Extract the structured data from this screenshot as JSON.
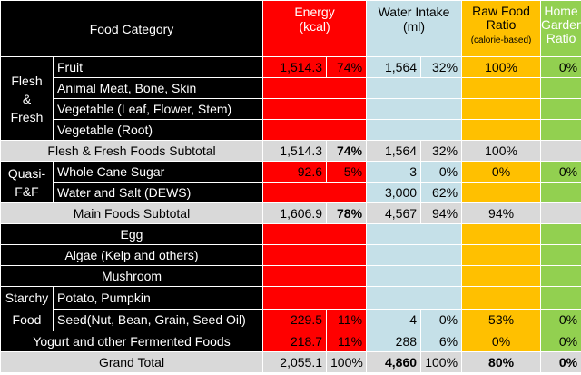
{
  "header": {
    "category": "Food Category",
    "energy_line1": "Energy",
    "energy_line2": "(kcal)",
    "water_line1": "Water Intake",
    "water_line2": "(ml)",
    "raw_line1": "Raw Food",
    "raw_line2": "Ratio",
    "raw_line3": "(calorie-based)",
    "garden_line1": "Home",
    "garden_line2": "Garden",
    "garden_line3": "Ratio"
  },
  "groups": {
    "flesh_1": "Flesh",
    "flesh_2": "&",
    "flesh_3": "Fresh",
    "quasi_1": "Quasi-",
    "quasi_2": "F&F",
    "starchy_1": "Starchy",
    "starchy_2": "Food"
  },
  "rows": {
    "fruit": {
      "label": "Fruit",
      "kcal": "1,514.3",
      "kcal_pct": "74%",
      "water": "1,564",
      "water_pct": "32%",
      "raw": "100%",
      "garden": "0%"
    },
    "meat": {
      "label": "Animal Meat, Bone, Skin"
    },
    "veg_leaf": {
      "label": "Vegetable (Leaf, Flower, Stem)"
    },
    "veg_root": {
      "label": "Vegetable (Root)"
    },
    "ff_sub": {
      "label": "Flesh & Fresh Foods Subtotal",
      "kcal": "1,514.3",
      "kcal_pct": "74%",
      "water": "1,564",
      "water_pct": "32%",
      "raw": "100%"
    },
    "sugar": {
      "label": "Whole Cane Sugar",
      "kcal": "92.6",
      "kcal_pct": "5%",
      "water": "3",
      "water_pct": "0%",
      "raw": "0%",
      "garden": "0%"
    },
    "water_salt": {
      "label": "Water and Salt (DEWS)",
      "water": "3,000",
      "water_pct": "62%"
    },
    "main_sub": {
      "label": "Main Foods Subtotal",
      "kcal": "1,606.9",
      "kcal_pct": "78%",
      "water": "4,567",
      "water_pct": "94%",
      "raw": "94%"
    },
    "egg": {
      "label": "Egg"
    },
    "algae": {
      "label": "Algae (Kelp and others)"
    },
    "mushroom": {
      "label": "Mushroom"
    },
    "potato": {
      "label": "Potato, Pumpkin"
    },
    "seed": {
      "label": "Seed(Nut, Bean, Grain, Seed Oil)",
      "kcal": "229.5",
      "kcal_pct": "11%",
      "water": "4",
      "water_pct": "0%",
      "raw": "53%",
      "garden": "0%"
    },
    "yogurt": {
      "label": "Yogurt and other Fermented Foods",
      "kcal": "218.7",
      "kcal_pct": "11%",
      "water": "288",
      "water_pct": "6%",
      "raw": "0%",
      "garden": "0%"
    },
    "grand": {
      "label": "Grand Total",
      "kcal": "2,055.1",
      "kcal_pct": "100%",
      "water": "4,860",
      "water_pct": "100%",
      "raw": "80%",
      "garden": "0%"
    }
  },
  "colors": {
    "energy": "#ff0000",
    "water": "#c5e0e8",
    "raw": "#ffc000",
    "garden": "#92d050",
    "label_bg": "#000000",
    "subtotal_bg": "#d9d9d9"
  }
}
